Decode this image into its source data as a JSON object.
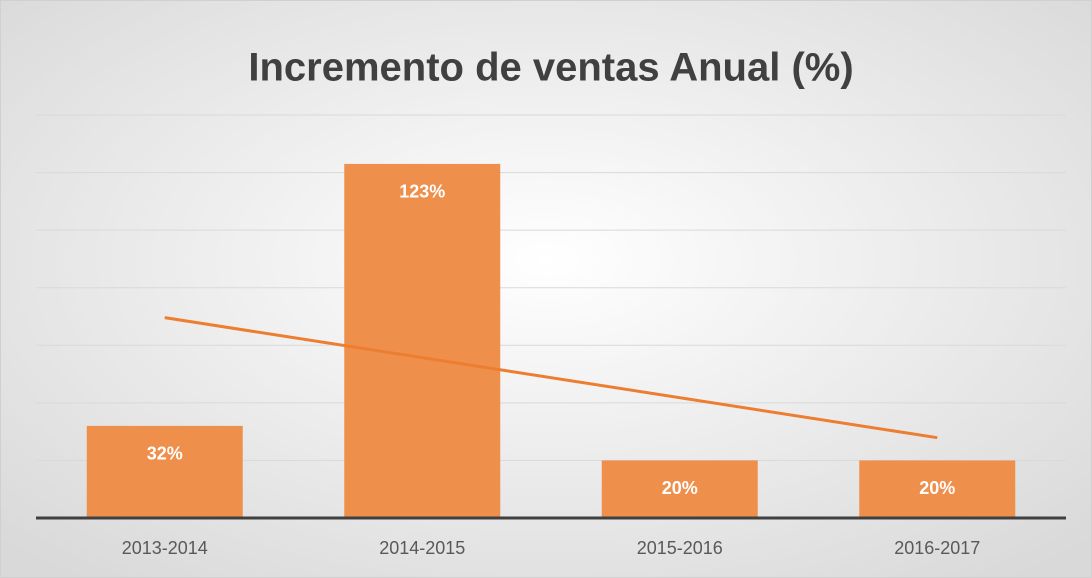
{
  "chart_data": {
    "type": "bar",
    "title": "Incremento de ventas Anual (%)",
    "categories": [
      "2013-2014",
      "2014-2015",
      "2015-2016",
      "2016-2017"
    ],
    "values": [
      32,
      123,
      20,
      20
    ],
    "value_labels": [
      "32%",
      "123%",
      "20%",
      "20%"
    ],
    "color": "#ef8f4c",
    "trendline": "linear",
    "trendline_color": "#ed7d31",
    "ylim": [
      0,
      140
    ],
    "yticks": [
      0,
      20,
      40,
      60,
      80,
      100,
      120,
      140
    ],
    "grid": true
  }
}
